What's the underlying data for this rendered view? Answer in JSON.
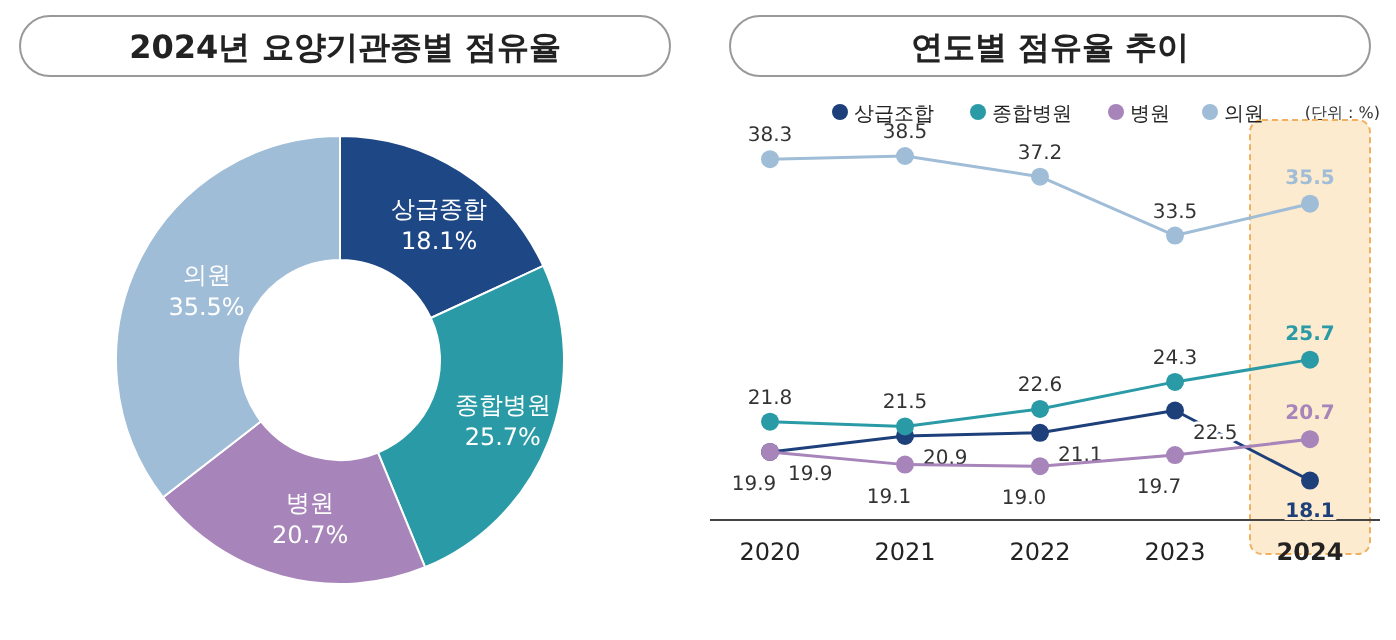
{
  "chart_data": [
    {
      "type": "donut",
      "title": "2024년 요양기관종별 점유율",
      "categories": [
        "상급종합",
        "종합병원",
        "병원",
        "의원"
      ],
      "values": [
        18.1,
        25.7,
        20.7,
        35.5
      ],
      "colors": [
        "#1d4785",
        "#2a9ba6",
        "#a784b9",
        "#a0bdd8"
      ],
      "value_labels": [
        "18.1%",
        "25.7%",
        "20.7%",
        "35.5%"
      ]
    },
    {
      "type": "line",
      "title": "연도별 점유율 추이",
      "annotations": [
        "(단위 : %)"
      ],
      "categories": [
        "2020",
        "2021",
        "2022",
        "2023",
        "2024"
      ],
      "series": [
        {
          "name": "상급조합",
          "color": "#1d3f7a",
          "values": [
            19.9,
            20.9,
            21.1,
            22.5,
            18.1
          ]
        },
        {
          "name": "종합병원",
          "color": "#2a9ba6",
          "values": [
            21.8,
            21.5,
            22.6,
            24.3,
            25.7
          ]
        },
        {
          "name": "병원",
          "color": "#a784b9",
          "values": [
            19.9,
            19.1,
            19.0,
            19.7,
            20.7
          ],
          "value_labels": [
            "19.9",
            "19.1",
            "19.0",
            "19.7",
            "20.7"
          ]
        },
        {
          "name": "의원",
          "color": "#a0bdd8",
          "values": [
            38.3,
            38.5,
            37.2,
            33.5,
            35.5
          ]
        }
      ],
      "data_labels": true,
      "marker": "circle",
      "legend": "top",
      "bands": [
        {
          "axis": "x",
          "from": "2024",
          "to": "2024",
          "color": "#fdebcf"
        }
      ]
    }
  ]
}
